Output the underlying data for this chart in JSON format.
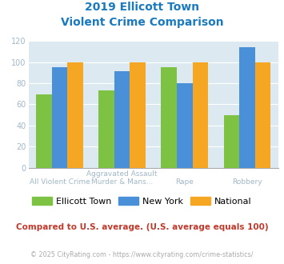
{
  "title_line1": "2019 Ellicott Town",
  "title_line2": "Violent Crime Comparison",
  "cat_labels_top": [
    "",
    "Aggravated Assault",
    "",
    ""
  ],
  "cat_labels_bot": [
    "All Violent Crime",
    "Murder & Mans...",
    "Rape",
    "Robbery"
  ],
  "series": {
    "Ellicott Town": [
      69,
      73,
      95,
      50
    ],
    "New York": [
      95,
      91,
      80,
      114
    ],
    "National": [
      100,
      100,
      100,
      100
    ]
  },
  "colors": {
    "Ellicott Town": "#7dc242",
    "New York": "#4a90d9",
    "National": "#f5a623"
  },
  "ylim": [
    0,
    120
  ],
  "yticks": [
    0,
    20,
    40,
    60,
    80,
    100,
    120
  ],
  "title_color": "#1a7abf",
  "axis_label_color": "#a0b8c8",
  "plot_bg_color": "#dce9f0",
  "footnote": "Compared to U.S. average. (U.S. average equals 100)",
  "copyright": "© 2025 CityRating.com - https://www.cityrating.com/crime-statistics/",
  "footnote_color": "#c0392b",
  "copyright_color": "#aaaaaa"
}
